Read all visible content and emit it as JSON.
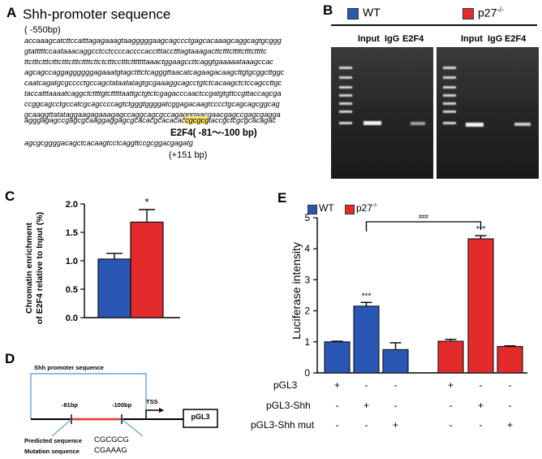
{
  "panels": {
    "a": "A",
    "b": "B",
    "c": "C",
    "d": "D",
    "e": "E"
  },
  "panel_a": {
    "title": "Shh-promoter sequence",
    "start_label": "( -550bp)",
    "sequence_lines": [
      "accaaagcatcttccatttagagaaagtaagggggaagcagccctgagcacaaagcaggcagtgcggg",
      "gtatttttccaataaacaggcctcctccccaccccacctttacctttagtaaagacttctttcttttctttcttttc",
      "ttctttctttctttctttctttcttttcttctctttcctttctttttttaaactggaagccttcaggtgaaaaataaagccac",
      "agcagccaggaggggggagaaatgtagctttctcagggttaacatcagaagacaagcttgtgcggcttggc",
      "caatcagatgcgcccctgccagctataatatagtgcgaaaggcagcctgtctcacaagctctccagccttgc",
      "taccatttaaaatcaggctcttttgtctttttaattgctgtctcgagacccaactccgatgtgttccgttaccagcga",
      "ccggcagcctgccatcgcagccccagtctgggtggggatcggagacaagtcccctgcagcagcggcag",
      "gcaaggttatataggaagagaaagagccaggcagcgccagagggaacgaacgagccgagcgagga",
      "agggagagccgagcgcaaggaggagcgcacacgcacacac"
    ],
    "highlight": "cgcgcg",
    "line9_tail": "taccgctcgcgcacagac",
    "e2f4_label": "E2F4( -81～-100 bp)",
    "sequence_after": "agcgcggggacagctcacaagtcctcaggttccgcggacgagatg",
    "end_label": "(+151 bp)"
  },
  "panel_b": {
    "legend": [
      {
        "name": "WT",
        "color": "#2a57b4"
      },
      {
        "name": "p27",
        "sup": "-/-",
        "color": "#e32b2b"
      }
    ],
    "lanes": [
      "Input",
      "IgG",
      "E2F4"
    ]
  },
  "panel_c": {
    "ylabel_line1": "Chromatin enrichment",
    "ylabel_line2": "of E2F4 relative to Input (%)",
    "significance": "*"
  },
  "panel_d": {
    "title": "Shh promoter sequence",
    "left_mark": "-81bp",
    "right_mark": "-100bp",
    "tss": "TSS",
    "box_label": "pGL3",
    "predicted_label": "Predicted sequence",
    "predicted_seq": "CGCGCG",
    "mutation_label": "Mutation sequence",
    "mutation_seq": "CGAAAG"
  },
  "panel_e": {
    "ylabel": "Luciferase intensity",
    "legend": [
      {
        "name": "WT",
        "color": "#2a57b4"
      },
      {
        "name": "p27",
        "sup": "-/-",
        "color": "#e32b2b"
      }
    ],
    "between_sig": "###",
    "rows": [
      {
        "label": "pGL3",
        "signs": [
          "+",
          "-",
          "-",
          "+",
          "-",
          "-"
        ]
      },
      {
        "label": "pGL3-Shh",
        "signs": [
          "-",
          "+",
          "-",
          "-",
          "+",
          "-"
        ]
      },
      {
        "label": "pGL3-Shh  mut",
        "signs": [
          "-",
          "-",
          "+",
          "-",
          "-",
          "+"
        ]
      }
    ]
  },
  "chart_data": [
    {
      "type": "bar",
      "panel": "C",
      "categories": [
        "WT",
        "p27-/-"
      ],
      "values": [
        1.03,
        1.68
      ],
      "errors": [
        0.1,
        0.22
      ],
      "colors": [
        "#2a57b4",
        "#e32b2b"
      ],
      "ylabel": "Chromatin enrichment of E2F4 relative to Input (%)",
      "ylim": [
        0,
        2.0
      ],
      "yticks": [
        0.0,
        0.5,
        1.0,
        1.5,
        2.0
      ],
      "ytick_labels": [
        "0.0",
        "0.5",
        "1.0",
        "1.5",
        "2.0"
      ],
      "significance": [
        "",
        "*"
      ]
    },
    {
      "type": "bar",
      "panel": "E",
      "values": [
        1.0,
        2.15,
        0.75,
        1.02,
        4.32,
        0.85
      ],
      "errors": [
        0.02,
        0.12,
        0.22,
        0.06,
        0.1,
        0.02
      ],
      "colors": [
        "#2a57b4",
        "#2a57b4",
        "#2a57b4",
        "#e32b2b",
        "#e32b2b",
        "#e32b2b"
      ],
      "ylabel": "Luciferase intensity",
      "ylim": [
        0,
        5
      ],
      "yticks": [
        0,
        1,
        2,
        3,
        4,
        5
      ],
      "ytick_labels": [
        "0",
        "1",
        "2",
        "3",
        "4",
        "5"
      ],
      "significance": [
        "",
        "***",
        "",
        "",
        "***",
        ""
      ]
    }
  ]
}
